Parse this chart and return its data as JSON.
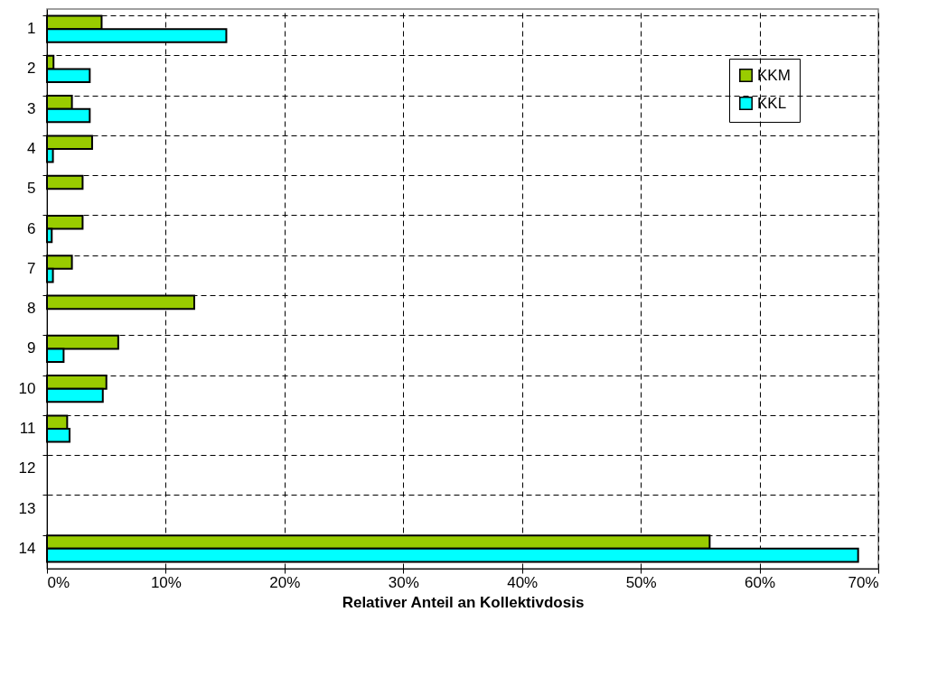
{
  "chart_data": {
    "type": "bar",
    "orientation": "horizontal",
    "xlabel": "Relativer Anteil an Kollektivdosis",
    "categories": [
      "1",
      "2",
      "3",
      "4",
      "5",
      "6",
      "7",
      "8",
      "9",
      "10",
      "11",
      "12",
      "13",
      "14"
    ],
    "series": [
      {
        "name": "KKM",
        "color": "#99cc00",
        "values": [
          4.6,
          0.55,
          2.1,
          3.8,
          3.0,
          3.0,
          2.1,
          12.4,
          6.0,
          5.0,
          1.7,
          null,
          null,
          55.8
        ]
      },
      {
        "name": "KKL",
        "color": "#00ffff",
        "values": [
          15.1,
          3.6,
          3.6,
          0.5,
          null,
          0.4,
          0.5,
          null,
          1.4,
          4.7,
          1.9,
          null,
          null,
          68.3
        ]
      }
    ],
    "xlim": [
      0,
      70
    ],
    "xticks": [
      {
        "value": 0,
        "label": "0%"
      },
      {
        "value": 10,
        "label": "10%"
      },
      {
        "value": 20,
        "label": "20%"
      },
      {
        "value": 30,
        "label": "30%"
      },
      {
        "value": 40,
        "label": "40%"
      },
      {
        "value": 50,
        "label": "50%"
      },
      {
        "value": 60,
        "label": "60%"
      },
      {
        "value": 70,
        "label": "70%"
      }
    ],
    "grid": true,
    "line_style": "dashed",
    "legend": "top right"
  }
}
